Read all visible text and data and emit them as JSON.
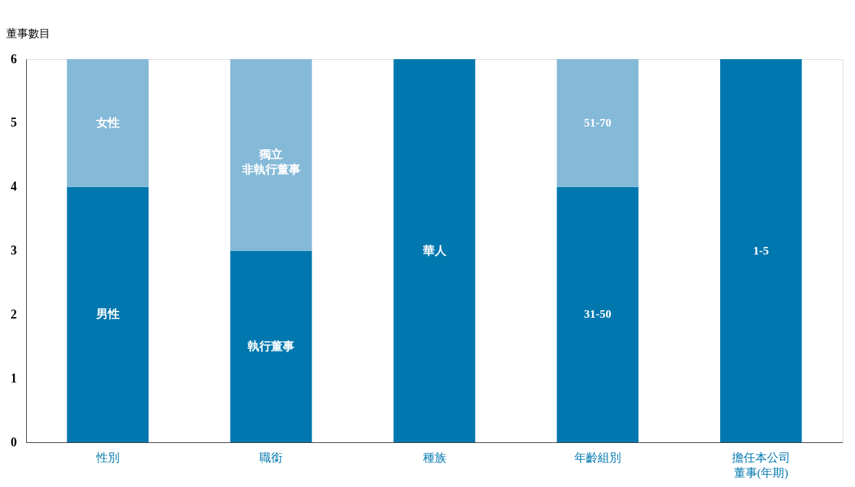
{
  "chart_data": {
    "type": "bar",
    "stacked": true,
    "ylabel": "董事數目",
    "categories": [
      "性別",
      "職銜",
      "種族",
      "年齡組別",
      "擔任本公司董事(年期)"
    ],
    "series": [
      {
        "color": "#0077ae",
        "values": [
          4,
          3,
          6,
          4,
          6
        ],
        "value_labels": [
          "男性",
          "執行董事",
          "華人",
          "31-50",
          "1-5"
        ]
      },
      {
        "color": "#85b9d8",
        "values": [
          2,
          3,
          null,
          2,
          null
        ],
        "value_labels": [
          "女性",
          "獨立非執行董事",
          null,
          "51-70",
          null
        ]
      }
    ],
    "ylim": [
      0,
      6
    ],
    "yticks": [
      0,
      1,
      2,
      3,
      4,
      5,
      6
    ],
    "grid": false
  }
}
